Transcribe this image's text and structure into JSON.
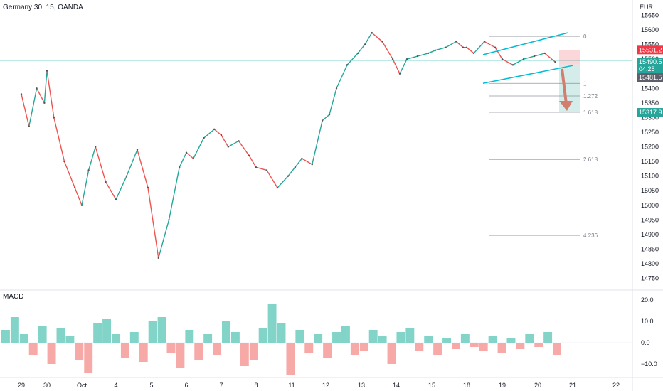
{
  "header": {
    "title": "Germany 30, 15, OANDA",
    "currency": "EUR"
  },
  "macd": {
    "label": "MACD",
    "ticks": [
      "20.0",
      "10.0",
      "0.0",
      "−10.0"
    ],
    "tick_values": [
      20,
      10,
      0,
      -10
    ]
  },
  "price_badges": {
    "stop": {
      "value": "15531.2",
      "color": "#f23645"
    },
    "current": {
      "value": "15490.5",
      "timer": "04:25",
      "color": "#26a69a"
    },
    "entry": {
      "value": "15481.5",
      "color": "#5d606b"
    },
    "target": {
      "value": "15317.9",
      "color": "#26a69a"
    }
  },
  "fib_levels": [
    {
      "label": "0",
      "price": 15578
    },
    {
      "label": "1",
      "price": 15417
    },
    {
      "label": "1.272",
      "price": 15374
    },
    {
      "label": "1.618",
      "price": 15318
    },
    {
      "label": "2.618",
      "price": 15157
    },
    {
      "label": "4.236",
      "price": 14897
    }
  ],
  "chart_data": {
    "type": "line",
    "title": "Germany 30, 15, OANDA",
    "xlabel": "",
    "ylabel": "EUR",
    "ylim": [
      14715,
      15690
    ],
    "yticks": [
      15650,
      15600,
      15550,
      15500,
      15450,
      15400,
      15350,
      15300,
      15250,
      15200,
      15150,
      15100,
      15050,
      15000,
      14950,
      14900,
      14850,
      14800,
      14750
    ],
    "x_ticks": [
      "29",
      "30",
      "Oct",
      "4",
      "5",
      "6",
      "7",
      "8",
      "11",
      "12",
      "13",
      "14",
      "15",
      "18",
      "19",
      "20",
      "21",
      "22"
    ],
    "x_tick_index": [
      0,
      1,
      2,
      3,
      4,
      5,
      6,
      7,
      8,
      9,
      10,
      11,
      12,
      13,
      14,
      15,
      16,
      17
    ],
    "grid": true,
    "series": [
      {
        "name": "",
        "x": [
          0,
          0.3,
          0.6,
          0.9,
          1.0,
          1.2,
          1.5,
          1.8,
          2.0,
          2.2,
          2.4,
          2.7,
          3.0,
          3.3,
          3.6,
          3.9,
          4.2,
          4.5,
          4.8,
          5.0,
          5.2,
          5.5,
          5.8,
          6.0,
          6.2,
          6.5,
          6.8,
          7.0,
          7.3,
          7.6,
          7.9,
          8.1,
          8.3,
          8.6,
          8.9,
          9.1,
          9.3,
          9.6,
          9.9,
          10.1,
          10.3,
          10.6,
          10.9,
          11.1,
          11.3,
          11.6,
          11.9,
          12.1,
          12.4,
          12.7,
          12.9,
          13.0,
          13.2,
          13.5,
          13.8,
          14.0,
          14.3,
          14.6,
          14.9,
          15.2,
          15.5
        ],
        "values": [
          15380,
          15270,
          15400,
          15350,
          15460,
          15300,
          15150,
          15060,
          15000,
          15120,
          15200,
          15080,
          15020,
          15100,
          15190,
          15060,
          14820,
          14950,
          15130,
          15180,
          15160,
          15230,
          15260,
          15240,
          15200,
          15220,
          15170,
          15130,
          15120,
          15060,
          15100,
          15130,
          15160,
          15140,
          15290,
          15310,
          15400,
          15480,
          15520,
          15550,
          15590,
          15560,
          15500,
          15450,
          15500,
          15510,
          15520,
          15530,
          15540,
          15560,
          15540,
          15540,
          15520,
          15560,
          15540,
          15500,
          15480,
          15500,
          15510,
          15520,
          15490
        ]
      }
    ],
    "macd_hist": {
      "name": "MACD",
      "ylim": [
        -16,
        24
      ],
      "values": [
        6,
        12,
        4,
        -6,
        8,
        -10,
        7,
        3,
        -8,
        -14,
        9,
        11,
        4,
        -7,
        5,
        -9,
        10,
        12,
        -5,
        -12,
        6,
        -8,
        4,
        -6,
        10,
        5,
        -11,
        -8,
        7,
        18,
        9,
        -15,
        6,
        -5,
        4,
        -7,
        5,
        8,
        -6,
        -4,
        6,
        3,
        -10,
        5,
        7,
        -4,
        3,
        -6,
        2,
        -3,
        4,
        -2,
        -4,
        3,
        -5,
        2,
        -3,
        4,
        -2,
        5,
        -6
      ]
    }
  }
}
